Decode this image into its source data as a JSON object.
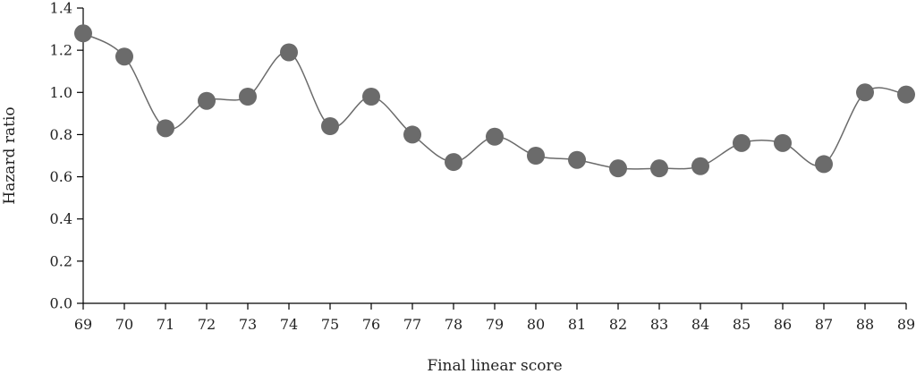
{
  "chart_data": {
    "type": "line",
    "xlabel": "Final linear score",
    "ylabel": "Hazard ratio",
    "ylim": [
      0,
      1.4
    ],
    "yticks": [
      "0.0",
      "0.2",
      "0.4",
      "0.6",
      "0.8",
      "1.0",
      "1.2",
      "1.4"
    ],
    "categories": [
      "69",
      "70",
      "71",
      "72",
      "73",
      "74",
      "75",
      "76",
      "77",
      "78",
      "79",
      "80",
      "81",
      "82",
      "83",
      "84",
      "85",
      "86",
      "87",
      "88",
      "89"
    ],
    "series": [
      {
        "values": [
          1.28,
          1.17,
          0.83,
          0.96,
          0.98,
          1.19,
          0.84,
          0.98,
          0.8,
          0.67,
          0.79,
          0.7,
          0.68,
          0.64,
          0.64,
          0.65,
          0.76,
          0.76,
          0.66,
          1.0,
          0.99
        ],
        "color": "#6b6b6b"
      }
    ],
    "grid": false,
    "legend": "none"
  }
}
